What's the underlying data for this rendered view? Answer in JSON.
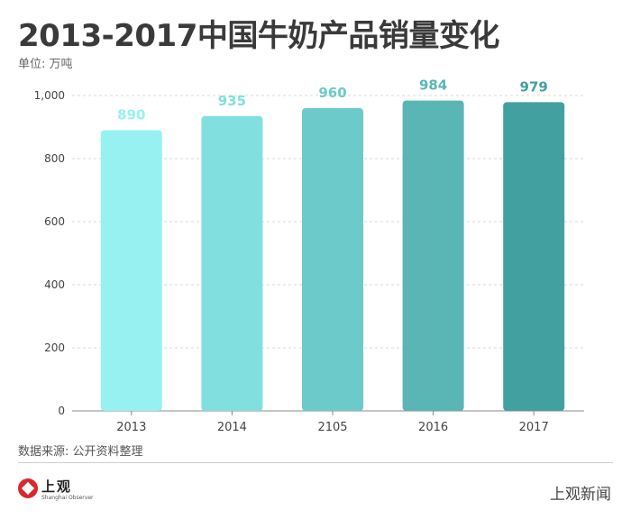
{
  "header": {
    "title": "2013-2017中国牛奶产品销量变化",
    "unit": "单位: 万吨"
  },
  "footer": {
    "source": "数据来源: 公开资料整理",
    "logo_name": "上观",
    "logo_en": "Shanghai Observer",
    "brand": "上观新闻"
  },
  "colors": {
    "bars": [
      "#98f1f1",
      "#82dfdf",
      "#6dcaca",
      "#5ab5b5",
      "#43a0a0"
    ]
  },
  "chart_data": {
    "type": "bar",
    "title": "2013-2017中国牛奶产品销量变化",
    "ylabel": "单位: 万吨",
    "categories": [
      "2013",
      "2014",
      "2105",
      "2016",
      "2017"
    ],
    "values": [
      890,
      935,
      960,
      984,
      979
    ],
    "data_labels": [
      "890",
      "935",
      "960",
      "984",
      "979"
    ],
    "y_ticks": [
      0,
      200,
      400,
      600,
      800,
      1000
    ],
    "y_tick_labels": [
      "0",
      "200",
      "400",
      "600",
      "800",
      "1,000"
    ],
    "ylim": [
      0,
      1000
    ],
    "grid": true,
    "legend": "none"
  }
}
